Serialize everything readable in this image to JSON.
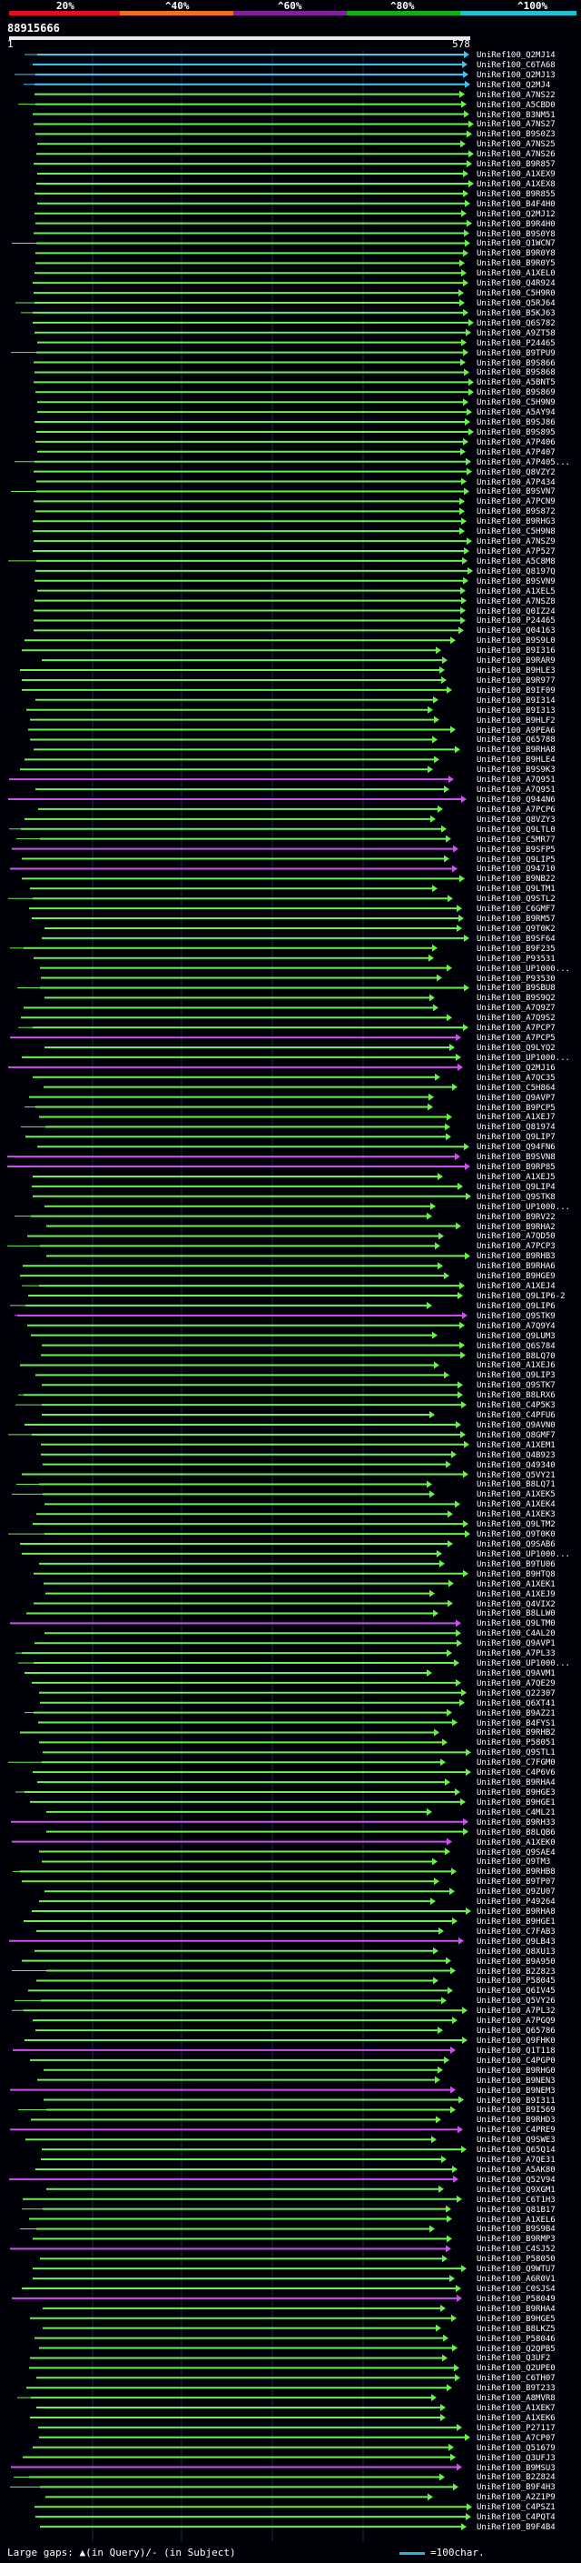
{
  "legend": {
    "labels": [
      "20%",
      "^40%",
      "^60%",
      "^80%",
      "^100%"
    ],
    "colors": [
      "#e01020",
      "#f07020",
      "#8020a0",
      "#10b010",
      "#20c0d0"
    ]
  },
  "query": {
    "id": "88915666",
    "start": "1",
    "end": "578"
  },
  "hits": [
    "UniRef100_Q2MJ14",
    "UniRef100_C6TA68",
    "UniRef100_Q2MJ13",
    "UniRef100_Q2MJ4",
    "UniRef100_A7NS22",
    "UniRef100_A5CBD0",
    "UniRef100_B3NM51",
    "UniRef100_A7NS27",
    "UniRef100_B9S0Z3",
    "UniRef100_A7NS25",
    "UniRef100_A7NS26",
    "UniRef100_B9R857",
    "UniRef100_A1XEX9",
    "UniRef100_A1XEX8",
    "UniRef100_B9R855",
    "UniRef100_B4F4H0",
    "UniRef100_Q2MJ12",
    "UniRef100_B9R4H0",
    "UniRef100_B9S0Y8",
    "UniRef100_Q1WCN7",
    "UniRef100_B9R0Y8",
    "UniRef100_B9R0Y5",
    "UniRef100_A1XEL0",
    "UniRef100_Q4R924",
    "UniRef100_C5H9R0",
    "UniRef100_Q5RJ64",
    "UniRef100_B5KJ63",
    "UniRef100_Q6S782",
    "UniRef100_A9ZT58",
    "UniRef100_P24465",
    "UniRef100_B9TPU9",
    "UniRef100_B9S866",
    "UniRef100_B9S868",
    "UniRef100_A5BNT5",
    "UniRef100_B9S869",
    "UniRef100_C5H9N9",
    "UniRef100_A5AY94",
    "UniRef100_B9SJ86",
    "UniRef100_B9S895",
    "UniRef100_A7P406",
    "UniRef100_A7P407",
    "UniRef100_A7P405...",
    "UniRef100_Q8VZY2",
    "UniRef100_A7P434",
    "UniRef100_B9SVN7",
    "UniRef100_A7PCN9",
    "UniRef100_B9S872",
    "UniRef100_B9RHG3",
    "UniRef100_C5H9N8",
    "UniRef100_A7NSZ9",
    "UniRef100_A7P527",
    "UniRef100_A5C8M8",
    "UniRef100_Q8197Q",
    "UniRef100_B9SVN9",
    "UniRef100_A1XEL5",
    "UniRef100_A7NSZ8",
    "UniRef100_Q0IZ24",
    "UniRef100_P24465",
    "UniRef100_Q04163",
    "UniRef100_B9S9L0",
    "UniRef100_B9I316",
    "UniRef100_B9RAR9",
    "UniRef100_B9HLE3",
    "UniRef100_B9R977",
    "UniRef100_B9IF09",
    "UniRef100_B9I314",
    "UniRef100_B9I313",
    "UniRef100_B9HLF2",
    "UniRef100_A9PEA6",
    "UniRef100_Q65788",
    "UniRef100_B9RHA8",
    "UniRef100_B9HLE4",
    "UniRef100_B9S9K3",
    "UniRef100_A7Q951",
    "UniRef100_A7Q951",
    "UniRef100_Q944N6",
    "UniRef100_A7PCP6",
    "UniRef100_Q8VZY3",
    "UniRef100_Q9LTL0",
    "UniRef100_C5MR77",
    "UniRef100_B9SFP5",
    "UniRef100_Q9LIP5",
    "UniRef100_Q94710",
    "UniRef100_B9NB22",
    "UniRef100_Q9LTM1",
    "UniRef100_Q9STL2",
    "UniRef100_C6GMF7",
    "UniRef100_B9RM57",
    "UniRef100_Q9T0K2",
    "UniRef100_B9SF64",
    "UniRef100_B9F235",
    "UniRef100_P93531",
    "UniRef100_UP1000...",
    "UniRef100_P93530",
    "UniRef100_B9SBU8",
    "UniRef100_B9S9Q2",
    "UniRef100_A7Q9Z7",
    "UniRef100_A7Q9S2",
    "UniRef100_A7PCP7",
    "UniRef100_A7PCP5",
    "UniRef100_Q9LYQ2",
    "UniRef100_UP1000...",
    "UniRef100_Q2MJ16",
    "UniRef100_A7QC35",
    "UniRef100_C5H864",
    "UniRef100_Q9AVP7",
    "UniRef100_B9PCP5",
    "UniRef100_A1XEJ7",
    "UniRef100_Q81974",
    "UniRef100_Q9LIP7",
    "UniRef100_Q94FN6",
    "UniRef100_B9SVN8",
    "UniRef100_B9RP85",
    "UniRef100_A1XEJ5",
    "UniRef100_Q9LIP4",
    "UniRef100_Q9STK8",
    "UniRef100_UP1000...",
    "UniRef100_B9RV22",
    "UniRef100_B9RHA2",
    "UniRef100_A7QD50",
    "UniRef100_A7PCP3",
    "UniRef100_B9RHB3",
    "UniRef100_B9RHA6",
    "UniRef100_B9HGE9",
    "UniRef100_A1XEJ4",
    "UniRef100_Q9LIP6-2",
    "UniRef100_Q9LIP6",
    "UniRef100_Q9STK9",
    "UniRef100_A7Q9Y4",
    "UniRef100_Q9LUM3",
    "UniRef100_Q6S784",
    "UniRef100_B8LQ70",
    "UniRef100_A1XEJ6",
    "UniRef100_Q9LIP3",
    "UniRef100_Q9STK7",
    "UniRef100_B8LRX6",
    "UniRef100_C4P5K3",
    "UniRef100_C4PFU6",
    "UniRef100_Q9AVN0",
    "UniRef100_Q8GMF7",
    "UniRef100_A1XEM1",
    "UniRef100_Q4B923",
    "UniRef100_Q49340",
    "UniRef100_Q5VY21",
    "UniRef100_B8LQ71",
    "UniRef100_A1XEK5",
    "UniRef100_A1XEK4",
    "UniRef100_A1XEK3",
    "UniRef100_Q9LTM2",
    "UniRef100_Q9T0K0",
    "UniRef100_Q9SAB6",
    "UniRef100_UP1000...",
    "UniRef100_B9TU06",
    "UniRef100_B9HTQ8",
    "UniRef100_A1XEK1",
    "UniRef100_A1XEJ9",
    "UniRef100_Q4VIX2",
    "UniRef100_B8LLW0",
    "UniRef100_Q9LTM0",
    "UniRef100_C4AL20",
    "UniRef100_Q9AVP1",
    "UniRef100_A7PL33",
    "UniRef100_UP1000...",
    "UniRef100_Q9AVM1",
    "UniRef100_A7QE29",
    "UniRef100_Q22307",
    "UniRef100_Q6XT41",
    "UniRef100_B9AZ21",
    "UniRef100_B4FYS1",
    "UniRef100_B9RHB2",
    "UniRef100_P58051",
    "UniRef100_Q9STL1",
    "UniRef100_C7FGM0",
    "UniRef100_C4P6V6",
    "UniRef100_B9RHA4",
    "UniRef100_B9HGE3",
    "UniRef100_B9HGE1",
    "UniRef100_C4ML21",
    "UniRef100_B9RH33",
    "UniRef100_B8LQB6",
    "UniRef100_A1XEK0",
    "UniRef100_Q9SAE4",
    "UniRef100_Q9TM3",
    "UniRef100_B9RHB8",
    "UniRef100_B9TP07",
    "UniRef100_Q9ZU07",
    "UniRef100_P49264",
    "UniRef100_B9RHA8",
    "UniRef100_B9HGE1",
    "UniRef100_C7FAB3",
    "UniRef100_Q9LB43",
    "UniRef100_Q8XU13",
    "UniRef100_B9A950",
    "UniRef100_B2Z823",
    "UniRef100_P58045",
    "UniRef100_Q6IV45",
    "UniRef100_Q5VY26",
    "UniRef100_A7PL32",
    "UniRef100_A7PGQ9",
    "UniRef100_Q65786",
    "UniRef100_Q9FHK0",
    "UniRef100_Q1T118",
    "UniRef100_C4PGP0",
    "UniRef100_B9RHG0",
    "UniRef100_B9NEN3",
    "UniRef100_B9NEM3",
    "UniRef100_B9I311",
    "UniRef100_B9I569",
    "UniRef100_B9RHD3",
    "UniRef100_C4PRE9",
    "UniRef100_Q9SWE3",
    "UniRef100_Q65Q14",
    "UniRef100_A7QE31",
    "UniRef100_A5AK80",
    "UniRef100_Q52V94",
    "UniRef100_Q9XGM1",
    "UniRef100_C6T1H3",
    "UniRef100_Q81B17",
    "UniRef100_A1XEL6",
    "UniRef100_B9S9B4",
    "UniRef100_B9RMP3",
    "UniRef100_C4SJ52",
    "UniRef100_P58050",
    "UniRef100_Q9WTU7",
    "UniRef100_A6R0V1",
    "UniRef100_C0SJS4",
    "UniRef100_P58049",
    "UniRef100_B9RHA4",
    "UniRef100_B9HGE5",
    "UniRef100_B8LKZ5",
    "UniRef100_P58046",
    "UniRef100_Q2QPB5",
    "UniRef100_Q3UF2",
    "UniRef100_Q2UPE0",
    "UniRef100_C6TH07",
    "UniRef100_B9T233",
    "UniRef100_A8MVR8",
    "UniRef100_A1XEK7",
    "UniRef100_A1XEK6",
    "UniRef100_P27117",
    "UniRef100_A7CP07",
    "UniRef100_Q51679",
    "UniRef100_Q3UFJ3",
    "UniRef100_B9MSU3",
    "UniRef100_B2Z824",
    "UniRef100_B9F4H3",
    "UniRef100_A2Z1P9",
    "UniRef100_C4PSZ1",
    "UniRef100_C4PQT4",
    "UniRef100_B9F4B4"
  ],
  "footer": {
    "text": "Large gaps: ▲(in Query)/- (in Subject)",
    "scale_label": "=100char.",
    "scale_color": "#29b6d6"
  },
  "colors": {
    "background": "#000008",
    "hit_green": "#6cf050",
    "hit_cyan": "#40c8f0",
    "hit_magenta": "#d050f0",
    "grid": "#1a2a48"
  }
}
